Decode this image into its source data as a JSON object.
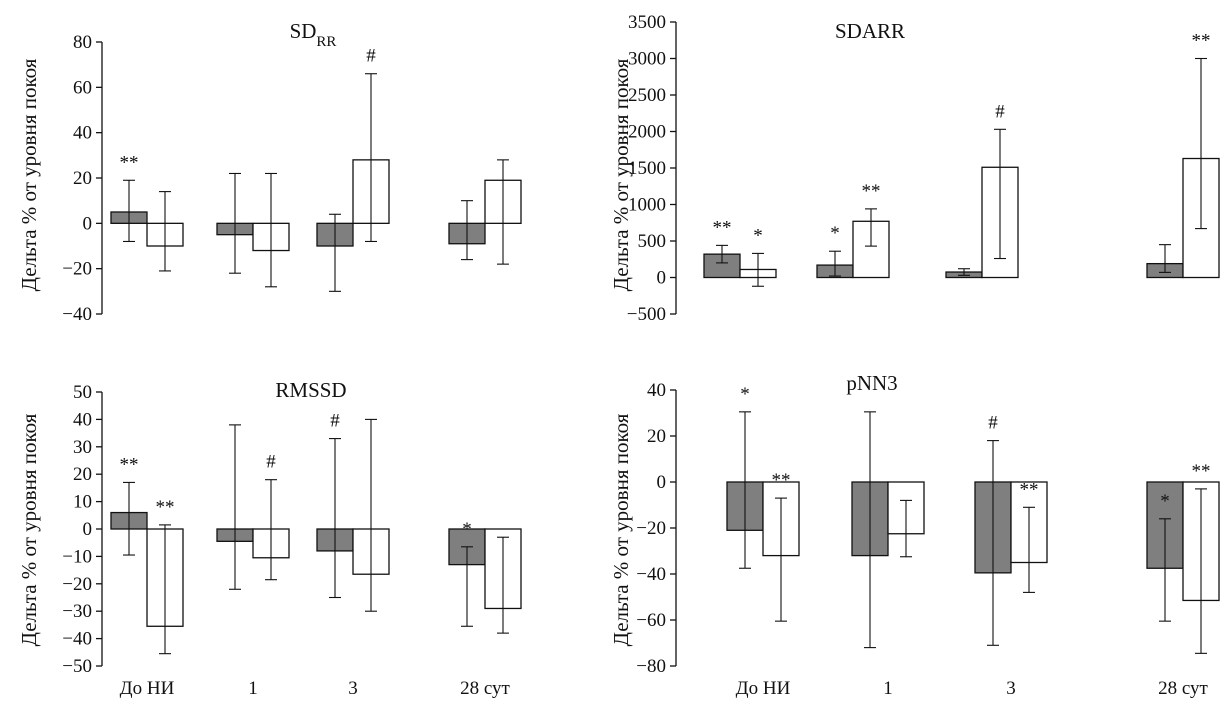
{
  "colors": {
    "filled_series": "#7f7f7f",
    "open_series": "#ffffff",
    "ink": "#111111"
  },
  "chart_data": [
    {
      "type": "bar",
      "title": "SD",
      "title_subscript": "RR",
      "ylabel": "Дельта % от уровня покоя",
      "ylim": [
        -40,
        80
      ],
      "yticks": [
        "80",
        "60",
        "40",
        "20",
        "0",
        "−20",
        "−40"
      ],
      "ytick_values": [
        80,
        60,
        40,
        20,
        0,
        -20,
        -40
      ],
      "categories": [
        "До НИ",
        "1",
        "3",
        "28 сут"
      ],
      "show_category_labels": false,
      "grid": false,
      "series": [
        {
          "values": [
            5,
            -5,
            -10,
            -9
          ],
          "err_low": [
            -8,
            -22,
            -30,
            -16
          ],
          "err_high": [
            19,
            22,
            4,
            10
          ],
          "annotations": [
            "**",
            "",
            "",
            ""
          ]
        },
        {
          "values": [
            -10,
            -12,
            28,
            19
          ],
          "err_low": [
            -21,
            -28,
            -8,
            -18
          ],
          "err_high": [
            14,
            22,
            66,
            28
          ],
          "annotations": [
            "",
            "",
            "#",
            ""
          ]
        }
      ]
    },
    {
      "type": "bar",
      "title": "SDARR",
      "title_subscript": "",
      "ylabel": "Дельта % от уровня покоя",
      "ylim": [
        -500,
        3500
      ],
      "yticks": [
        "3500",
        "3000",
        "2500",
        "2000",
        "1500",
        "1000",
        "500",
        "0",
        "−500"
      ],
      "ytick_values": [
        3500,
        3000,
        2500,
        2000,
        1500,
        1000,
        500,
        0,
        -500
      ],
      "categories": [
        "До НИ",
        "1",
        "3",
        "28 сут"
      ],
      "show_category_labels": false,
      "grid": false,
      "series": [
        {
          "values": [
            320,
            170,
            75,
            190
          ],
          "err_low": [
            200,
            20,
            30,
            70
          ],
          "err_high": [
            440,
            360,
            120,
            450
          ],
          "annotations": [
            "**",
            "*",
            "",
            ""
          ]
        },
        {
          "values": [
            110,
            770,
            1510,
            1630
          ],
          "err_low": [
            -120,
            430,
            260,
            670
          ],
          "err_high": [
            330,
            940,
            2030,
            3000
          ],
          "annotations": [
            "*",
            "**",
            "#",
            "**"
          ]
        }
      ]
    },
    {
      "type": "bar",
      "title": "RMSSD",
      "title_subscript": "",
      "ylabel": "Дельта % от уровня покоя",
      "ylim": [
        -50,
        50
      ],
      "yticks": [
        "50",
        "40",
        "30",
        "20",
        "10",
        "0",
        "−10",
        "−20",
        "−30",
        "−40",
        "−50"
      ],
      "ytick_values": [
        50,
        40,
        30,
        20,
        10,
        0,
        -10,
        -20,
        -30,
        -40,
        -50
      ],
      "categories": [
        "До НИ",
        "1",
        "3",
        "28 сут"
      ],
      "show_category_labels": true,
      "grid": false,
      "series": [
        {
          "values": [
            6,
            -4.5,
            -8,
            -13
          ],
          "err_low": [
            -9.5,
            -22,
            -25,
            -35.5
          ],
          "err_high": [
            17,
            38,
            33,
            -6.5
          ],
          "annotations": [
            "**",
            "",
            "#",
            "*"
          ]
        },
        {
          "values": [
            -35.5,
            -10.5,
            -16.5,
            -29
          ],
          "err_low": [
            -45.5,
            -18.5,
            -30,
            -38
          ],
          "err_high": [
            1.5,
            18,
            40,
            -3
          ],
          "annotations": [
            "**",
            "#",
            "",
            ""
          ]
        }
      ]
    },
    {
      "type": "bar",
      "title": "pNN3",
      "title_subscript": "",
      "ylabel": "Дельта % от уровня покоя",
      "ylim": [
        -80,
        40
      ],
      "yticks": [
        "40",
        "20",
        "0",
        "−20",
        "−40",
        "−60",
        "−80"
      ],
      "ytick_values": [
        40,
        20,
        0,
        -20,
        -40,
        -60,
        -80
      ],
      "categories": [
        "До НИ",
        "1",
        "3",
        "28 сут"
      ],
      "show_category_labels": true,
      "grid": false,
      "series": [
        {
          "values": [
            -21,
            -32,
            -39.5,
            -37.5
          ],
          "err_low": [
            -37.5,
            -72,
            -71,
            -60.5
          ],
          "err_high": [
            30.5,
            30.5,
            18,
            -16
          ],
          "annotations": [
            "*",
            "",
            "#",
            "*"
          ]
        },
        {
          "values": [
            -32,
            -22.5,
            -35,
            -51.5
          ],
          "err_low": [
            -60.5,
            -32.5,
            -48,
            -74.5
          ],
          "err_high": [
            -7,
            -8,
            -11,
            -3
          ],
          "annotations": [
            "**",
            "",
            "**",
            "**"
          ]
        }
      ]
    }
  ]
}
